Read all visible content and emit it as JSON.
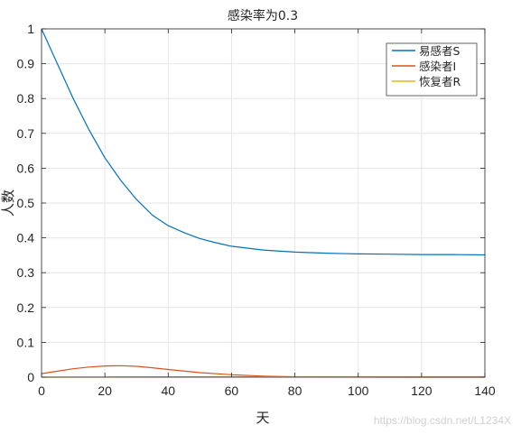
{
  "chart_data": {
    "type": "line",
    "title": "感染率为0.3",
    "xlabel": "天",
    "ylabel": "人数",
    "xlim": [
      0,
      140
    ],
    "ylim": [
      0,
      1
    ],
    "xticks": [
      0,
      20,
      40,
      60,
      80,
      100,
      120,
      140
    ],
    "yticks": [
      0,
      0.1,
      0.2,
      0.3,
      0.4,
      0.5,
      0.6,
      0.7,
      0.8,
      0.9,
      1
    ],
    "ytick_labels": [
      "0",
      "0.1",
      "0.2",
      "0.3",
      "0.4",
      "0.5",
      "0.6",
      "0.7",
      "0.8",
      "0.9",
      "1"
    ],
    "grid": true,
    "legend_position": "top-right",
    "series": [
      {
        "name": "易感者S",
        "color": "#0072bd",
        "x": [
          0,
          5,
          10,
          15,
          20,
          25,
          30,
          35,
          40,
          45,
          50,
          55,
          60,
          70,
          80,
          90,
          100,
          110,
          120,
          130,
          140
        ],
        "y": [
          1.0,
          0.9,
          0.8,
          0.71,
          0.63,
          0.565,
          0.51,
          0.465,
          0.435,
          0.415,
          0.398,
          0.386,
          0.376,
          0.365,
          0.359,
          0.356,
          0.354,
          0.353,
          0.352,
          0.352,
          0.351
        ]
      },
      {
        "name": "感染者I",
        "color": "#d95319",
        "x": [
          0,
          5,
          10,
          15,
          20,
          25,
          30,
          35,
          40,
          50,
          60,
          70,
          80,
          90,
          100,
          120,
          140
        ],
        "y": [
          0.01,
          0.017,
          0.024,
          0.029,
          0.032,
          0.033,
          0.031,
          0.027,
          0.022,
          0.013,
          0.007,
          0.003,
          0.001,
          0.0005,
          0.0002,
          0.0001,
          0.0
        ]
      },
      {
        "name": "恢复者R",
        "color": "#edb120",
        "x": [
          0,
          20,
          40,
          60,
          80,
          100,
          120,
          140
        ],
        "y": [
          0,
          0.0005,
          0.001,
          0.0012,
          0.0013,
          0.0013,
          0.0013,
          0.0013
        ]
      }
    ]
  },
  "watermark": "https://blog.csdn.net/L1234X"
}
